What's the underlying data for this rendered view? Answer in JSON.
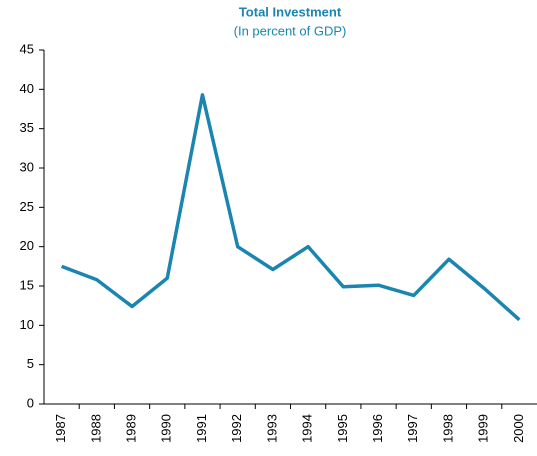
{
  "chart_data": {
    "type": "line",
    "title": "Total Investment",
    "subtitle": "(In percent of GDP)",
    "categories": [
      "1987",
      "1988",
      "1989",
      "1990",
      "1991",
      "1992",
      "1993",
      "1994",
      "1995",
      "1996",
      "1997",
      "1998",
      "1999",
      "2000"
    ],
    "values": [
      17.5,
      15.8,
      12.4,
      16.0,
      39.3,
      20.0,
      17.1,
      20.0,
      14.9,
      15.1,
      13.8,
      18.4,
      14.7,
      10.7
    ],
    "color": "#1a86b0",
    "ylim": [
      0,
      45
    ],
    "yticks": [
      0,
      5,
      10,
      15,
      20,
      25,
      30,
      35,
      40,
      45
    ],
    "grid": false
  }
}
